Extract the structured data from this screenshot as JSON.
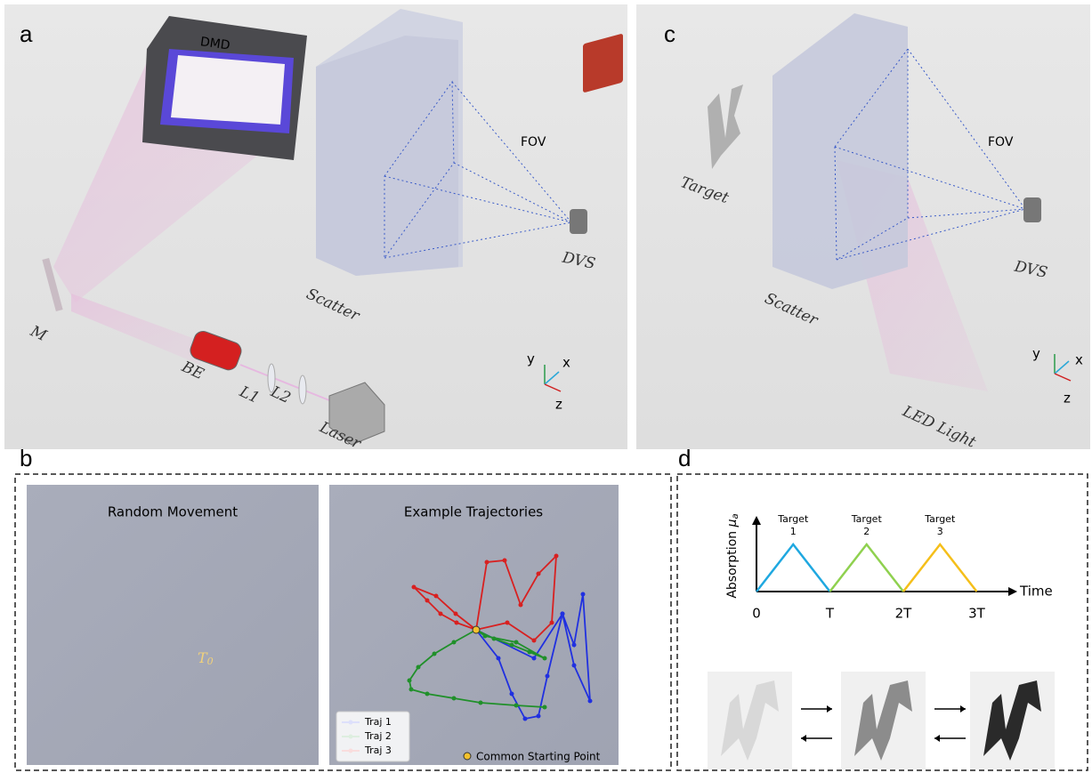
{
  "panel_a": {
    "label": "a",
    "dmd": "DMD",
    "fov": "FOV",
    "dvs": "DVS",
    "scatter": "Scatter",
    "mirror": "M",
    "expander": "BE",
    "lens1": "L1",
    "lens2": "L2",
    "laser": "Laser",
    "axes": {
      "y": "y",
      "x": "x",
      "z": "z"
    }
  },
  "panel_b": {
    "label": "b",
    "left_title": "Random Movement",
    "start_symbol": "T",
    "start_subscript": "0",
    "right_title": "Example Trajectories",
    "legend": [
      "Traj 1",
      "Traj 2",
      "Traj 3"
    ],
    "note": "Common Starting Point"
  },
  "panel_c": {
    "label": "c",
    "target": "Target",
    "fov": "FOV",
    "dvs": "DVS",
    "scatter": "Scatter",
    "light": "LED Light",
    "axes": {
      "y": "y",
      "x": "x",
      "z": "z"
    }
  },
  "panel_d": {
    "label": "d",
    "y_label": "Absorption ",
    "y_symbol": "μ",
    "y_subscript": "a",
    "x_label": "Time",
    "peaks": [
      {
        "name": "Target",
        "index": "1"
      },
      {
        "name": "Target",
        "index": "2"
      },
      {
        "name": "Target",
        "index": "3"
      }
    ],
    "ticks": [
      "0",
      "T",
      "2T",
      "3T"
    ]
  }
}
